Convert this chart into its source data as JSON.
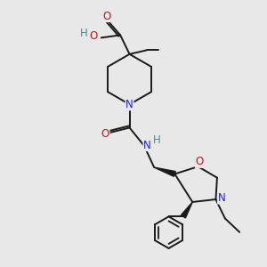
{
  "bg_color": "#e8e8e8",
  "bond_color": "#1a1a1a",
  "atom_colors": {
    "N": "#2222cc",
    "O": "#cc1111",
    "H_label": "#4a8888",
    "C": "#1a1a1a"
  },
  "bond_width": 1.4,
  "font_size_atoms": 8.5,
  "figsize": [
    3.0,
    3.0
  ],
  "dpi": 100
}
